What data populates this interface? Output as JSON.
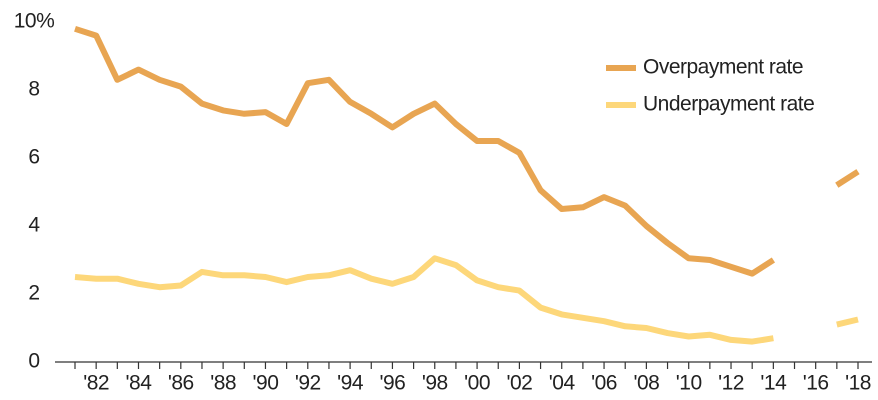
{
  "chart_data": {
    "type": "line",
    "categories": [
      null,
      "'82",
      null,
      "'84",
      null,
      "'86",
      null,
      "'88",
      null,
      "'90",
      null,
      "'92",
      null,
      "'94",
      null,
      "'96",
      null,
      "'98",
      null,
      "'00",
      null,
      "'02",
      null,
      "'04",
      null,
      "'06",
      null,
      "'08",
      null,
      "'10",
      null,
      "'12",
      null,
      "'14",
      null,
      "'16",
      null,
      "'18"
    ],
    "series": [
      {
        "name": "Overpayment rate",
        "color": "#e8a552",
        "values": [
          9.8,
          9.6,
          8.3,
          8.6,
          8.3,
          8.1,
          7.6,
          7.4,
          7.3,
          7.35,
          7.0,
          8.2,
          8.3,
          7.65,
          7.3,
          6.9,
          7.3,
          7.6,
          7.0,
          6.5,
          6.5,
          6.15,
          5.05,
          4.5,
          4.55,
          4.85,
          4.6,
          4.0,
          3.5,
          3.05,
          3.0,
          2.8,
          2.6,
          3.0,
          null,
          null,
          5.2,
          5.6
        ]
      },
      {
        "name": "Underpayment rate",
        "color": "#fdd77a",
        "values": [
          2.5,
          2.45,
          2.45,
          2.3,
          2.2,
          2.25,
          2.65,
          2.55,
          2.55,
          2.5,
          2.35,
          2.5,
          2.55,
          2.7,
          2.45,
          2.3,
          2.5,
          3.05,
          2.85,
          2.4,
          2.2,
          2.1,
          1.6,
          1.4,
          1.3,
          1.2,
          1.05,
          1.0,
          0.85,
          0.75,
          0.8,
          0.65,
          0.6,
          0.7,
          null,
          null,
          1.1,
          1.25
        ]
      }
    ],
    "ylim": [
      0,
      10
    ],
    "yticks": [
      0,
      2,
      4,
      6,
      8,
      {
        "value": 10,
        "label": "10%"
      }
    ],
    "legend": "upper right"
  }
}
